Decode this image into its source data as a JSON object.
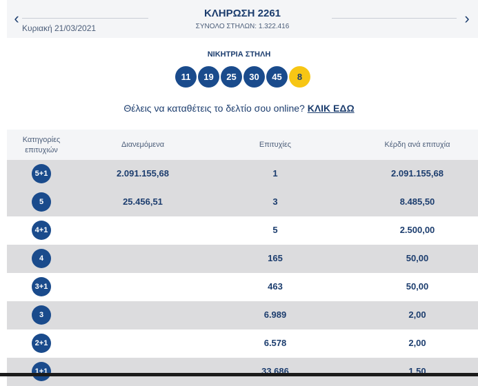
{
  "header": {
    "date": "Κυριακή 21/03/2021",
    "title": "ΚΛΗΡΩΣΗ 2261",
    "total_columns": "ΣΥΝΟΛΟ ΣΤΗΛΩΝ: 1.322.416",
    "prev_icon": "chevron-left-icon",
    "next_icon": "chevron-right-icon"
  },
  "winning": {
    "label": "ΝΙΚΗΤΡΙΑ ΣΤΗΛΗ",
    "numbers": [
      "11",
      "19",
      "25",
      "30",
      "45"
    ],
    "joker": "8"
  },
  "online": {
    "text": "Θέλεις να καταθέτεις το δελτίο σου online?",
    "link": "ΚΛΙΚ ΕΔΩ"
  },
  "table": {
    "headers": {
      "category": "Κατηγορίες επιτυχιών",
      "distributed": "Διανεμόμενα",
      "winners": "Επιτυχίες",
      "prize": "Κέρδη ανά επιτυχία"
    },
    "rows": [
      {
        "category": "5+1",
        "distributed": "2.091.155,68",
        "winners": "1",
        "prize": "2.091.155,68"
      },
      {
        "category": "5",
        "distributed": "25.456,51",
        "winners": "3",
        "prize": "8.485,50"
      },
      {
        "category": "4+1",
        "distributed": "",
        "winners": "5",
        "prize": "2.500,00"
      },
      {
        "category": "4",
        "distributed": "",
        "winners": "165",
        "prize": "50,00"
      },
      {
        "category": "3+1",
        "distributed": "",
        "winners": "463",
        "prize": "50,00"
      },
      {
        "category": "3",
        "distributed": "",
        "winners": "6.989",
        "prize": "2,00"
      },
      {
        "category": "2+1",
        "distributed": "",
        "winners": "6.578",
        "prize": "2,00"
      },
      {
        "category": "1+1",
        "distributed": "",
        "winners": "33.686",
        "prize": "1,50"
      }
    ]
  },
  "colors": {
    "ball": "#1a4b8c",
    "joker": "#f7c614",
    "text": "#1c3d6e",
    "row_alt": "#dcdcde"
  }
}
